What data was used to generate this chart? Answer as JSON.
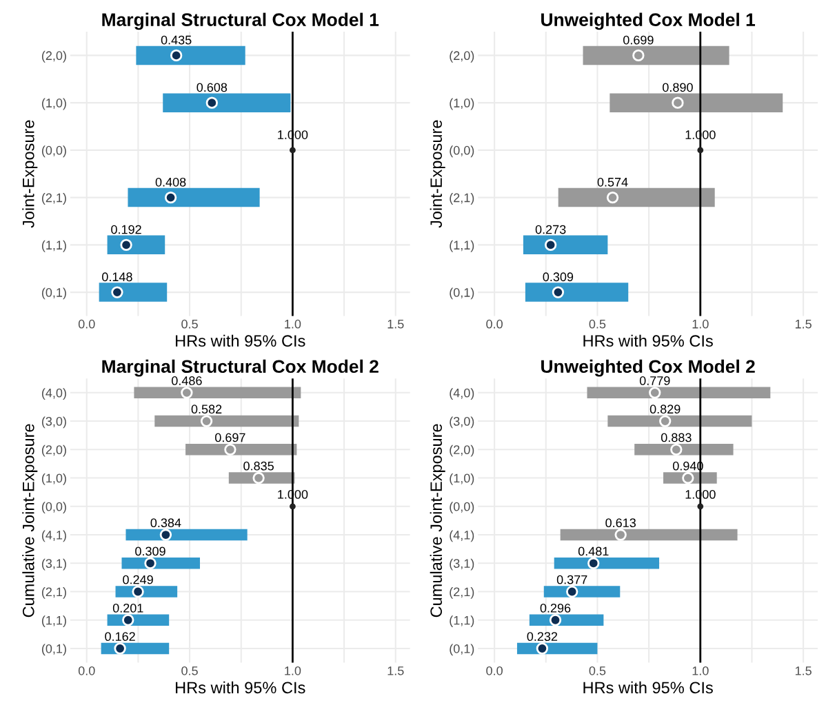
{
  "chart_data": [
    {
      "type": "bar",
      "orientation": "horizontal",
      "title": "Marginal Structural Cox Model 1",
      "xlabel": "HRs with 95% CIs",
      "ylabel": "Joint-Exposure",
      "categories": [
        "(2,0)",
        "(1,0)",
        "(0,0)",
        "(2,1)",
        "(1,1)",
        "(0,1)"
      ],
      "xlim": [
        -0.08,
        1.57
      ],
      "xticks": [
        {
          "value": 0,
          "label": "0.0"
        },
        {
          "value": 0.25,
          "label": null
        },
        {
          "value": 0.5,
          "label": "0.5"
        },
        {
          "value": 0.75,
          "label": null
        },
        {
          "value": 1,
          "label": "1.0"
        },
        {
          "value": 1.25,
          "label": null
        },
        {
          "value": 1.5,
          "label": "1.5"
        }
      ],
      "grid": true,
      "ref_lines": [
        {
          "axis": "x",
          "value": 1,
          "color": "#000000"
        }
      ],
      "series": [
        {
          "base": [
            0.24,
            0.37,
            null,
            0.2,
            0.1,
            0.06
          ],
          "values": [
            0.53,
            0.62,
            null,
            0.64,
            0.28,
            0.33
          ],
          "colors": [
            "#3399cc",
            "#3399cc",
            null,
            "#3399cc",
            "#3399cc",
            "#3399cc"
          ]
        },
        {
          "type": "scatter",
          "values": [
            0.435,
            0.608,
            1.0,
            0.408,
            0.192,
            0.148
          ],
          "sizes": [
            1,
            1,
            0.36,
            1,
            1,
            1
          ],
          "colors": [
            "#0d2d52",
            "#0d2d52",
            "#222222",
            "#0d2d52",
            "#0d2d52",
            "#0d2d52"
          ],
          "value_labels": [
            "0.435",
            "0.608",
            "1.000",
            "0.408",
            "0.192",
            "0.148"
          ]
        }
      ]
    },
    {
      "type": "bar",
      "orientation": "horizontal",
      "title": "Unweighted Cox Model 1",
      "xlabel": "HRs with 95% CIs",
      "ylabel": "Joint-Exposure",
      "categories": [
        "(2,0)",
        "(1,0)",
        "(0,0)",
        "(2,1)",
        "(1,1)",
        "(0,1)"
      ],
      "xlim": [
        -0.08,
        1.57
      ],
      "xticks": [
        {
          "value": 0,
          "label": "0.0"
        },
        {
          "value": 0.25,
          "label": null
        },
        {
          "value": 0.5,
          "label": "0.5"
        },
        {
          "value": 0.75,
          "label": null
        },
        {
          "value": 1,
          "label": "1.0"
        },
        {
          "value": 1.25,
          "label": null
        },
        {
          "value": 1.5,
          "label": "1.5"
        }
      ],
      "grid": true,
      "ref_lines": [
        {
          "axis": "x",
          "value": 1,
          "color": "#000000"
        }
      ],
      "series": [
        {
          "base": [
            0.43,
            0.56,
            null,
            0.31,
            0.14,
            0.15
          ],
          "values": [
            0.71,
            0.84,
            null,
            0.76,
            0.41,
            0.5
          ],
          "colors": [
            "#999999",
            "#999999",
            null,
            "#999999",
            "#3399cc",
            "#3399cc"
          ]
        },
        {
          "type": "scatter",
          "values": [
            0.699,
            0.89,
            1.0,
            0.574,
            0.273,
            0.309
          ],
          "sizes": [
            1,
            1,
            0.36,
            1,
            1,
            1
          ],
          "colors": [
            "#999999",
            "#999999",
            "#222222",
            "#999999",
            "#0d2d52",
            "#0d2d52"
          ],
          "value_labels": [
            "0.699",
            "0.890",
            "1.000",
            "0.574",
            "0.273",
            "0.309"
          ]
        }
      ]
    },
    {
      "type": "bar",
      "orientation": "horizontal",
      "title": "Marginal Structural Cox Model 2",
      "xlabel": "HRs with 95% CIs",
      "ylabel": "Cumulative Joint-Exposure",
      "categories": [
        "(4,0)",
        "(3,0)",
        "(2,0)",
        "(1,0)",
        "(0,0)",
        "(4,1)",
        "(3,1)",
        "(2,1)",
        "(1,1)",
        "(0,1)"
      ],
      "xlim": [
        -0.08,
        1.57
      ],
      "xticks": [
        {
          "value": 0,
          "label": "0.0"
        },
        {
          "value": 0.25,
          "label": null
        },
        {
          "value": 0.5,
          "label": "0.5"
        },
        {
          "value": 0.75,
          "label": null
        },
        {
          "value": 1,
          "label": "1.0"
        },
        {
          "value": 1.25,
          "label": null
        },
        {
          "value": 1.5,
          "label": "1.5"
        }
      ],
      "grid": true,
      "ref_lines": [
        {
          "axis": "x",
          "value": 1,
          "color": "#000000"
        }
      ],
      "series": [
        {
          "base": [
            0.23,
            0.33,
            0.48,
            0.69,
            null,
            0.19,
            0.17,
            0.14,
            0.1,
            0.07
          ],
          "values": [
            0.81,
            0.7,
            0.54,
            0.32,
            null,
            0.59,
            0.38,
            0.3,
            0.3,
            0.33
          ],
          "colors": [
            "#999999",
            "#999999",
            "#999999",
            "#999999",
            null,
            "#3399cc",
            "#3399cc",
            "#3399cc",
            "#3399cc",
            "#3399cc"
          ]
        },
        {
          "type": "scatter",
          "values": [
            0.486,
            0.582,
            0.697,
            0.835,
            1.0,
            0.384,
            0.309,
            0.249,
            0.201,
            0.162
          ],
          "sizes": [
            1,
            1,
            1,
            1,
            0.36,
            1,
            1,
            1,
            1,
            1
          ],
          "colors": [
            "#999999",
            "#999999",
            "#999999",
            "#999999",
            "#222222",
            "#0d2d52",
            "#0d2d52",
            "#0d2d52",
            "#0d2d52",
            "#0d2d52"
          ],
          "value_labels": [
            "0.486",
            "0.582",
            "0.697",
            "0.835",
            "1.000",
            "0.384",
            "0.309",
            "0.249",
            "0.201",
            "0.162"
          ]
        }
      ]
    },
    {
      "type": "bar",
      "orientation": "horizontal",
      "title": "Unweighted Cox Model 2",
      "xlabel": "HRs with 95% CIs",
      "ylabel": "Cumulative Joint-Exposure",
      "categories": [
        "(4,0)",
        "(3,0)",
        "(2,0)",
        "(1,0)",
        "(0,0)",
        "(4,1)",
        "(3,1)",
        "(2,1)",
        "(1,1)",
        "(0,1)"
      ],
      "xlim": [
        -0.08,
        1.57
      ],
      "xticks": [
        {
          "value": 0,
          "label": "0.0"
        },
        {
          "value": 0.25,
          "label": null
        },
        {
          "value": 0.5,
          "label": "0.5"
        },
        {
          "value": 0.75,
          "label": null
        },
        {
          "value": 1,
          "label": "1.0"
        },
        {
          "value": 1.25,
          "label": null
        },
        {
          "value": 1.5,
          "label": "1.5"
        }
      ],
      "grid": true,
      "ref_lines": [
        {
          "axis": "x",
          "value": 1,
          "color": "#000000"
        }
      ],
      "series": [
        {
          "base": [
            0.45,
            0.55,
            0.68,
            0.82,
            null,
            0.32,
            0.29,
            0.24,
            0.17,
            0.11
          ],
          "values": [
            0.89,
            0.7,
            0.48,
            0.26,
            null,
            0.86,
            0.51,
            0.37,
            0.36,
            0.39
          ],
          "colors": [
            "#999999",
            "#999999",
            "#999999",
            "#999999",
            null,
            "#999999",
            "#3399cc",
            "#3399cc",
            "#3399cc",
            "#3399cc"
          ]
        },
        {
          "type": "scatter",
          "values": [
            0.779,
            0.829,
            0.883,
            0.94,
            1.0,
            0.613,
            0.481,
            0.377,
            0.296,
            0.232
          ],
          "sizes": [
            1,
            1,
            1,
            1,
            0.36,
            1,
            1,
            1,
            1,
            1
          ],
          "colors": [
            "#999999",
            "#999999",
            "#999999",
            "#999999",
            "#222222",
            "#999999",
            "#0d2d52",
            "#0d2d52",
            "#0d2d52",
            "#0d2d52"
          ],
          "value_labels": [
            "0.779",
            "0.829",
            "0.883",
            "0.940",
            "1.000",
            "0.613",
            "0.481",
            "0.377",
            "0.296",
            "0.232"
          ]
        }
      ]
    }
  ]
}
